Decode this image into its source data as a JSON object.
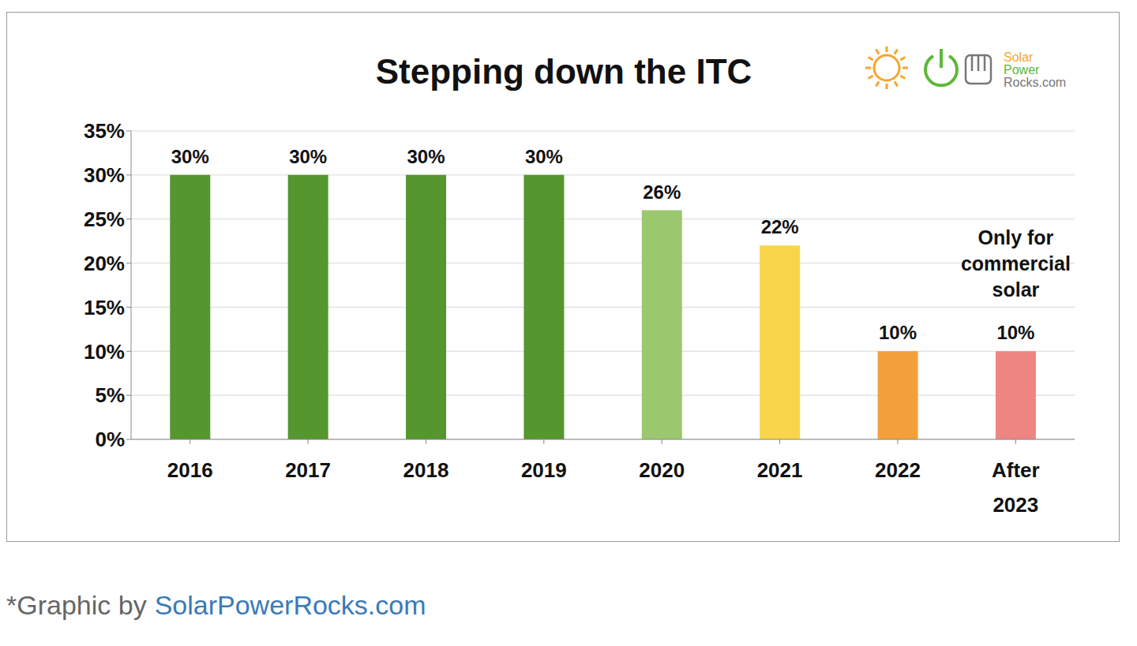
{
  "chart_data": {
    "type": "bar",
    "title": "Stepping down the ITC",
    "logo": "Solar Power Rocks.com",
    "caption": [
      "*Graphic by",
      "SolarPowerRocks.com"
    ],
    "categories": [
      "2016",
      "2017",
      "2018",
      "2019",
      "2020",
      "2021",
      "2022",
      "After 2023"
    ],
    "values": [
      30,
      30,
      30,
      30,
      26,
      22,
      10,
      10
    ],
    "value_labels": [
      "30%",
      "30%",
      "30%",
      "30%",
      "26%",
      "22%",
      "10%",
      "10%"
    ],
    "colors": [
      "#55962f",
      "#55962f",
      "#55962f",
      "#55962f",
      "#9bc86f",
      "#f8d54b",
      "#f3a03b",
      "#ef8583"
    ],
    "ylim": [
      0,
      35
    ],
    "yticks": [
      {
        "value": 0,
        "label": "0%"
      },
      {
        "value": 5,
        "label": "5%"
      },
      {
        "value": 10,
        "label": "10%"
      },
      {
        "value": 15,
        "label": "15%"
      },
      {
        "value": 20,
        "label": "20%"
      },
      {
        "value": 25,
        "label": "25%"
      },
      {
        "value": 30,
        "label": "30%"
      },
      {
        "value": 35,
        "label": "35%"
      }
    ],
    "grid": true,
    "data_labels": true,
    "annotations": [
      {
        "text": "Only for commercial solar",
        "category": "After 2023"
      }
    ]
  }
}
